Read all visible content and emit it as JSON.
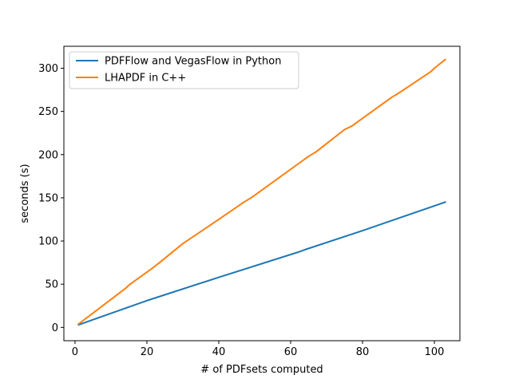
{
  "chart_data": {
    "type": "line",
    "title": "",
    "xlabel": "# of PDFsets computed",
    "ylabel": "seconds (s)",
    "xlim": [
      -3.1,
      107.1
    ],
    "ylim": [
      -15.4,
      325.4
    ],
    "xticks": [
      0,
      20,
      40,
      60,
      80,
      100
    ],
    "yticks": [
      0,
      50,
      100,
      150,
      200,
      250,
      300
    ],
    "grid": false,
    "legend": "top-left",
    "series": [
      {
        "name": "PDFFlow and VegasFlow in Python",
        "color": "#1f77b4",
        "x": [
          1,
          20,
          40,
          62,
          64,
          80,
          103
        ],
        "y": [
          3,
          31,
          58,
          87,
          90,
          112,
          145
        ]
      },
      {
        "name": "LHAPDF in C++",
        "color": "#ff7f0e",
        "x": [
          1,
          14,
          15,
          22,
          25,
          30,
          40,
          47,
          49,
          65,
          67,
          75,
          77,
          88,
          90,
          99,
          100,
          103
        ],
        "y": [
          4,
          45,
          49,
          70,
          80,
          97,
          125,
          145,
          150,
          198,
          203,
          229,
          233,
          266,
          271,
          296,
          300,
          310
        ]
      }
    ]
  }
}
